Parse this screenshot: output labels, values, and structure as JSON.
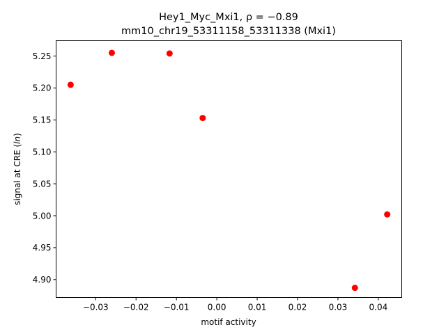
{
  "chart_data": {
    "type": "scatter",
    "title_line1": "Hey1_Myc_Mxi1, ρ = −0.89",
    "title_line2": "mm10_chr19_53311158_53311338 (Mxi1)",
    "xlabel": "motif activity",
    "ylabel": "signal at CRE (ln)",
    "xlim": [
      -0.0398,
      0.0458
    ],
    "ylim": [
      4.872,
      5.274
    ],
    "xticks": [
      -0.03,
      -0.02,
      -0.01,
      0.0,
      0.01,
      0.02,
      0.03,
      0.04
    ],
    "xtick_labels": [
      "−0.03",
      "−0.02",
      "−0.01",
      "0.00",
      "0.01",
      "0.02",
      "0.03",
      "0.04"
    ],
    "yticks": [
      4.9,
      4.95,
      5.0,
      5.05,
      5.1,
      5.15,
      5.2,
      5.25
    ],
    "ytick_labels": [
      "4.90",
      "4.95",
      "5.00",
      "5.05",
      "5.10",
      "5.15",
      "5.20",
      "5.25"
    ],
    "grid": false,
    "marker_color": "#ff0000",
    "points": [
      {
        "x": -0.0362,
        "y": 5.205
      },
      {
        "x": -0.026,
        "y": 5.255
      },
      {
        "x": -0.0117,
        "y": 5.254
      },
      {
        "x": -0.0035,
        "y": 5.153
      },
      {
        "x": 0.0342,
        "y": 4.887
      },
      {
        "x": 0.0422,
        "y": 5.002
      }
    ]
  }
}
